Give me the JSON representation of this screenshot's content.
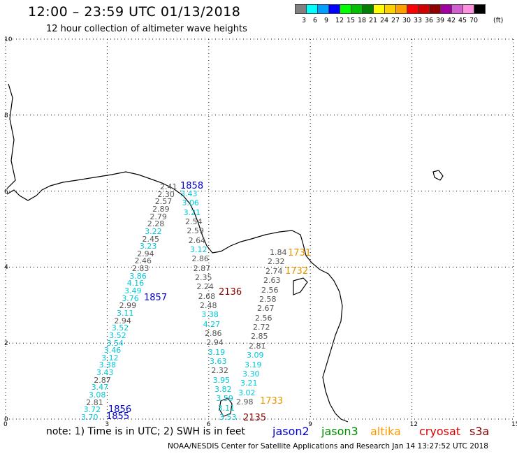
{
  "header": {
    "title": "12:00 – 23:59 UTC 01/13/2018",
    "subtitle": "12 hour collection of altimeter wave heights"
  },
  "color_scale": {
    "unit_label": "(ft)",
    "bins": [
      {
        "label": "3",
        "color": "#808080"
      },
      {
        "label": "6",
        "color": "#00ffff"
      },
      {
        "label": "9",
        "color": "#00a0ff"
      },
      {
        "label": "12",
        "color": "#0000ff"
      },
      {
        "label": "15",
        "color": "#00ff00"
      },
      {
        "label": "18",
        "color": "#00c000"
      },
      {
        "label": "21",
        "color": "#008000"
      },
      {
        "label": "24",
        "color": "#ffff00"
      },
      {
        "label": "27",
        "color": "#ffd000"
      },
      {
        "label": "30",
        "color": "#ffa000"
      },
      {
        "label": "33",
        "color": "#ff0000"
      },
      {
        "label": "36",
        "color": "#d00000"
      },
      {
        "label": "39",
        "color": "#900000"
      },
      {
        "label": "42",
        "color": "#a000a0"
      },
      {
        "label": "45",
        "color": "#d060d0"
      },
      {
        "label": "70",
        "color": "#ff90e0"
      },
      {
        "label": "",
        "color": "#000000"
      }
    ]
  },
  "map": {
    "x_ticks": [
      "0",
      "3",
      "6",
      "9",
      "12",
      "15"
    ],
    "y_ticks": [
      "10",
      "8",
      "6",
      "4",
      "2",
      "0"
    ],
    "track_labels": [
      {
        "text": "1858",
        "color": "#0000cc"
      },
      {
        "text": "1857",
        "color": "#0000cc"
      },
      {
        "text": "1856",
        "color": "#0000cc"
      },
      {
        "text": "1855",
        "color": "#0000cc"
      },
      {
        "text": "2136",
        "color": "#800000"
      },
      {
        "text": "2135",
        "color": "#800000"
      },
      {
        "text": "1731",
        "color": "#e69500"
      },
      {
        "text": "1732",
        "color": "#e69500"
      },
      {
        "text": "1733",
        "color": "#e69500"
      }
    ],
    "track_a_values": [
      "2.41",
      "2.30",
      "2.57",
      "2.89",
      "2.79",
      "2.28",
      "3.22",
      "2.45",
      "3.23",
      "2.94",
      "2.46",
      "2.83",
      "3.86",
      "4.16",
      "3.49",
      "3.76",
      "2.99",
      "3.11",
      "2.94",
      "3.52",
      "3.52",
      "3.54",
      "3.46",
      "3.12",
      "3.38",
      "3.43",
      "2.87",
      "3.47",
      "3.08",
      "2.81",
      "3.72",
      "3.70"
    ],
    "track_b_values": [
      "3.43",
      "3.06",
      "3.21",
      "2.54",
      "2.59",
      "2.64",
      "3.12",
      "2.86",
      "2.87",
      "2.35",
      "2.24",
      "2.68",
      "2.48",
      "3.38",
      "4.27",
      "2.86",
      "2.94",
      "3.19",
      "3.63",
      "2.32",
      "3.95",
      "3.82",
      "3.59",
      "3.11",
      "3.53"
    ],
    "track_c_values": [
      "1.84",
      "2.32",
      "2.74",
      "2.63",
      "2.56",
      "2.58",
      "2.67",
      "2.56",
      "2.72",
      "2.85",
      "2.81",
      "3.09",
      "3.19",
      "3.30",
      "3.21",
      "3.02",
      "2.98"
    ]
  },
  "footer": {
    "note": "note:  1) Time is in UTC;  2) SWH is in feet",
    "satellites": [
      {
        "name": "jason2",
        "color": "#0000cc"
      },
      {
        "name": "jason3",
        "color": "#009000"
      },
      {
        "name": "altika",
        "color": "#ff9900"
      },
      {
        "name": "cryosat",
        "color": "#dd0000"
      },
      {
        "name": "s3a",
        "color": "#800000"
      }
    ],
    "credit": "NOAA/NESDIS Center for Satellite Applications and Research    Jan 14 13:27:52 UTC 2018"
  }
}
